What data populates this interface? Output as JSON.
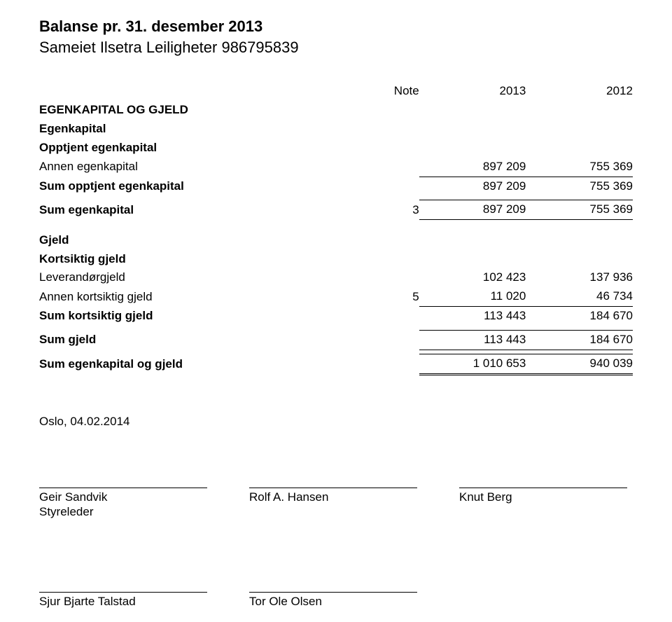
{
  "header": {
    "title": "Balanse pr. 31. desember 2013",
    "subtitle": "Sameiet Ilsetra Leiligheter 986795839"
  },
  "columns": {
    "note": "Note",
    "year1": "2013",
    "year2": "2012"
  },
  "sections": {
    "equity_heading": "EGENKAPITAL OG GJELD",
    "equity_sub": "Egenkapital",
    "retained_heading": "Opptjent egenkapital",
    "debt_heading": "Gjeld",
    "short_debt_heading": "Kortsiktig gjeld"
  },
  "rows": {
    "annen_ek": {
      "label": "Annen egenkapital",
      "note": "",
      "y1": "897 209",
      "y2": "755 369"
    },
    "sum_opptjent": {
      "label": "Sum opptjent egenkapital",
      "note": "",
      "y1": "897 209",
      "y2": "755 369"
    },
    "sum_ek": {
      "label": "Sum egenkapital",
      "note": "3",
      "y1": "897 209",
      "y2": "755 369"
    },
    "leverandor": {
      "label": "Leverandørgjeld",
      "note": "",
      "y1": "102 423",
      "y2": "137 936"
    },
    "annen_kg": {
      "label": "Annen kortsiktig gjeld",
      "note": "5",
      "y1": "11 020",
      "y2": "46 734"
    },
    "sum_kg": {
      "label": "Sum kortsiktig gjeld",
      "note": "",
      "y1": "113 443",
      "y2": "184 670"
    },
    "sum_gjeld": {
      "label": "Sum gjeld",
      "note": "",
      "y1": "113 443",
      "y2": "184 670"
    },
    "sum_ek_gjeld": {
      "label": "Sum egenkapital og gjeld",
      "note": "",
      "y1": "1 010 653",
      "y2": "940 039"
    }
  },
  "footer": {
    "date": "Oslo, 04.02.2014",
    "signatures_row1": [
      {
        "name": "Geir Sandvik",
        "role": "Styreleder"
      },
      {
        "name": "Rolf A. Hansen",
        "role": ""
      },
      {
        "name": "Knut Berg",
        "role": ""
      }
    ],
    "signatures_row2": [
      {
        "name": "Sjur Bjarte Talstad",
        "role": ""
      },
      {
        "name": "Tor Ole Olsen",
        "role": ""
      }
    ]
  },
  "style": {
    "font_family": "Arial",
    "title_fontsize_pt": 17,
    "body_fontsize_pt": 13,
    "text_color": "#000000",
    "background_color": "#ffffff",
    "rule_color": "#000000"
  }
}
